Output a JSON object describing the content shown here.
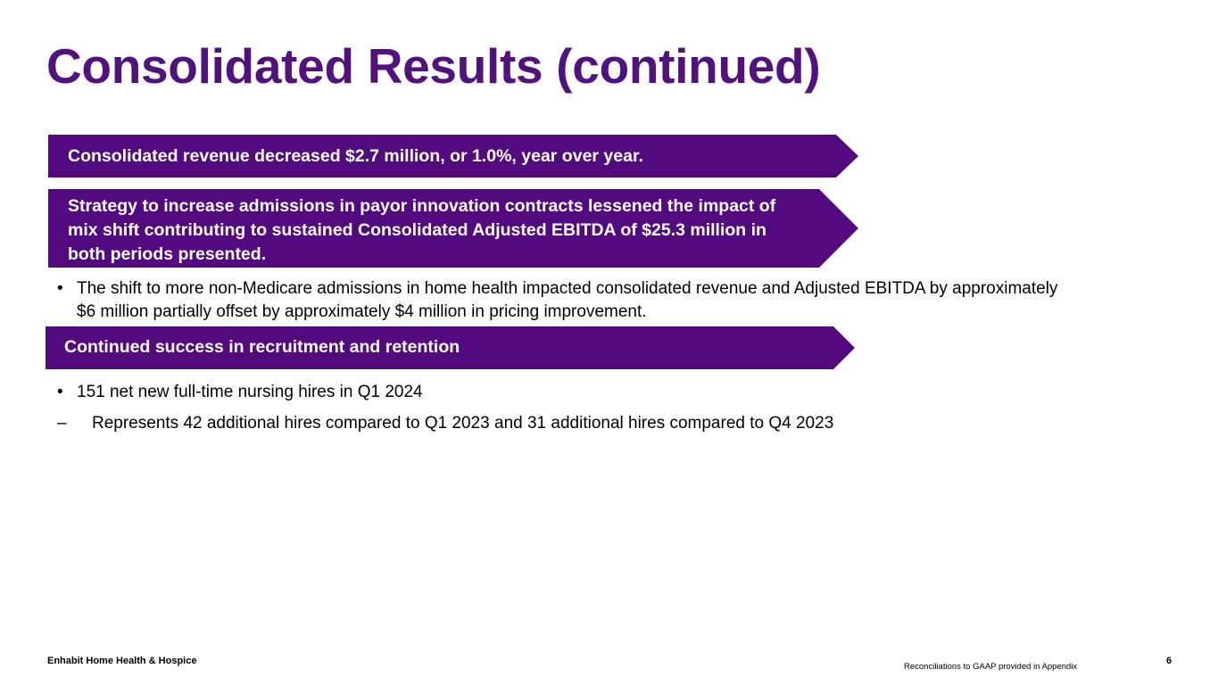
{
  "slide": {
    "title": "Consolidated Results (continued)",
    "banners": [
      "Consolidated revenue decreased $2.7 million, or 1.0%, year over year.",
      "Strategy to increase admissions in payor innovation contracts lessened the impact of mix shift contributing to sustained Consolidated Adjusted EBITDA of $25.3 million in both periods presented.",
      "Continued success in recruitment and retention"
    ],
    "bullets": {
      "mix_shift": {
        "mark": "•",
        "text": "The shift to more non-Medicare admissions in home health impacted consolidated revenue and Adjusted EBITDA by approximately $6 million partially offset by approximately $4 million in pricing improvement."
      },
      "hires": {
        "mark": "•",
        "text": "151 net new full-time nursing hires in Q1 2024"
      },
      "hires_sub": {
        "mark": "–",
        "text": "Represents 42 additional hires compared to Q1 2023 and 31 additional hires compared to Q4 2023"
      }
    }
  },
  "footer": {
    "company": "Enhabit Home Health & Hospice",
    "note": "Reconciliations to GAAP provided in Appendix",
    "page_number": "6"
  },
  "colors": {
    "brand_purple": "#520a7e"
  }
}
